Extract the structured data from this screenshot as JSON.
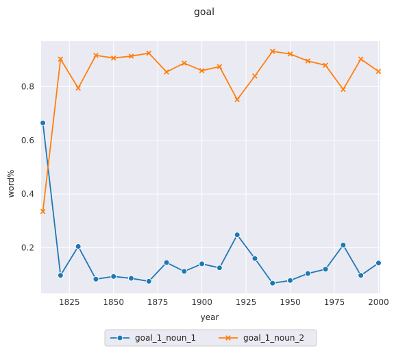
{
  "chart_data": {
    "type": "line",
    "title": "goal",
    "xlabel": "year",
    "ylabel": "word%",
    "xlim": [
      1809,
      2001
    ],
    "ylim": [
      0.03,
      0.97
    ],
    "xticks": [
      1825,
      1850,
      1875,
      1900,
      1925,
      1950,
      1975,
      2000
    ],
    "xtick_labels": [
      "1825",
      "1850",
      "1875",
      "1900",
      "1925",
      "1950",
      "1975",
      "2000"
    ],
    "yticks": [
      0.2,
      0.4,
      0.6,
      0.8
    ],
    "ytick_labels": [
      "0.2",
      "0.4",
      "0.6",
      "0.8"
    ],
    "grid": true,
    "legend_position": "bottom-center",
    "x": [
      1810,
      1820,
      1830,
      1840,
      1850,
      1860,
      1870,
      1880,
      1890,
      1900,
      1910,
      1920,
      1930,
      1940,
      1950,
      1960,
      1970,
      1980,
      1990,
      2000
    ],
    "series": [
      {
        "name": "goal_1_noun_1",
        "color": "#1f77b4",
        "marker": "circle",
        "values": [
          0.665,
          0.097,
          0.205,
          0.083,
          0.093,
          0.086,
          0.075,
          0.145,
          0.112,
          0.14,
          0.125,
          0.248,
          0.16,
          0.068,
          0.078,
          0.104,
          0.12,
          0.21,
          0.097,
          0.143
        ]
      },
      {
        "name": "goal_1_noun_2",
        "color": "#ff7f0e",
        "marker": "x",
        "values": [
          0.335,
          0.903,
          0.795,
          0.917,
          0.907,
          0.914,
          0.925,
          0.855,
          0.888,
          0.86,
          0.875,
          0.752,
          0.84,
          0.932,
          0.922,
          0.896,
          0.88,
          0.79,
          0.903,
          0.857
        ]
      }
    ]
  }
}
